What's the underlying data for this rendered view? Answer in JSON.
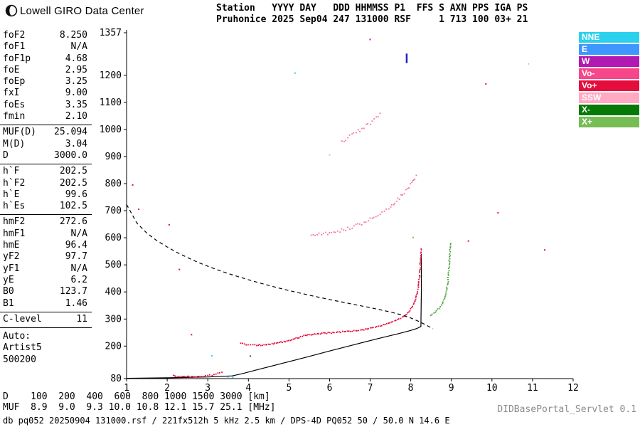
{
  "header": {
    "title": "Lowell GIRO Data Center",
    "station_line1": "Station   YYYY DAY   DDD HHMMSS P1  FFS S AXN PPS IGA PS",
    "station_line2": "Pruhonice 2025 Sep04 247 131000 RSF     1 713 100 03+ 21"
  },
  "readouts": {
    "groups": [
      {
        "rows": [
          {
            "label": "foF2",
            "value": "8.250"
          },
          {
            "label": "foF1",
            "value": "N/A"
          },
          {
            "label": "foF1p",
            "value": "4.68"
          },
          {
            "label": "foE",
            "value": "2.95"
          },
          {
            "label": "foEp",
            "value": "3.25"
          },
          {
            "label": "fxI",
            "value": "9.00"
          },
          {
            "label": "foEs",
            "value": "3.35"
          },
          {
            "label": "fmin",
            "value": "2.10"
          }
        ]
      },
      {
        "rows": [
          {
            "label": "MUF(D)",
            "value": "25.094"
          },
          {
            "label": "M(D)",
            "value": "3.04"
          },
          {
            "label": "D",
            "value": "3000.0"
          }
        ]
      },
      {
        "rows": [
          {
            "label": "h`F",
            "value": "202.5"
          },
          {
            "label": "h`F2",
            "value": "202.5"
          },
          {
            "label": "h`E",
            "value": "99.6"
          },
          {
            "label": "h`Es",
            "value": "102.5"
          }
        ]
      },
      {
        "rows": [
          {
            "label": "hmF2",
            "value": "272.6"
          },
          {
            "label": "hmF1",
            "value": "N/A"
          },
          {
            "label": "hmE",
            "value": "96.4"
          },
          {
            "label": "yF2",
            "value": "97.7"
          },
          {
            "label": "yF1",
            "value": "N/A"
          },
          {
            "label": "yE",
            "value": "6.2"
          },
          {
            "label": "B0",
            "value": "123.7"
          },
          {
            "label": "B1",
            "value": "1.46"
          }
        ]
      },
      {
        "rows": [
          {
            "label": "C-level",
            "value": "11"
          }
        ]
      }
    ],
    "auto_label": "Auto:",
    "auto_lines": [
      "Artist5",
      "500200"
    ]
  },
  "legend": {
    "items": [
      {
        "label": "NNE",
        "color": "#2bd1ec"
      },
      {
        "label": "E",
        "color": "#3e97ff"
      },
      {
        "label": "W",
        "color": "#b119b1"
      },
      {
        "label": "Vo-",
        "color": "#f7478a"
      },
      {
        "label": "Vo+",
        "color": "#e40d3c"
      },
      {
        "label": "SSW",
        "color": "#ffa9c3"
      },
      {
        "label": "X-",
        "color": "#077907"
      },
      {
        "label": "X+",
        "color": "#76bd55"
      }
    ]
  },
  "footer": {
    "d_line": "D    100  200  400  600  800 1000 1500 3000 [km]",
    "muf_line": "MUF  8.9  9.0  9.3 10.0 10.8 12.1 15.7 25.1 [MHz]",
    "status": "db pq052 20250904 131000.rsf / 221fx512h 5 kHz 2.5 km / DPS-4D PQ052 50 / 50.0 N 14.6 E",
    "servlet": "DIDBasePortal_Servlet 0.1"
  },
  "chart_data": {
    "type": "scatter",
    "title": "Ionogram, Pruhonice, 2025 Sep04 13:10:00",
    "xlabel": "[MHz]",
    "ylabel": "[km]",
    "xlim": [
      1,
      12
    ],
    "ylim": [
      80,
      1357
    ],
    "x_ticks": [
      1,
      2,
      3,
      4,
      5,
      6,
      7,
      8,
      9,
      10,
      11,
      12
    ],
    "y_ticks": [
      80,
      200,
      300,
      400,
      500,
      600,
      700,
      800,
      900,
      1000,
      1100,
      1200,
      1357
    ],
    "grid": false,
    "legend_position": "right",
    "series": [
      {
        "name": "transmission-curve",
        "mode": "dashed",
        "color": "#000000",
        "width": 1.2,
        "points": [
          [
            1.0,
            723
          ],
          [
            1.25,
            655
          ],
          [
            1.5,
            617
          ],
          [
            1.75,
            589
          ],
          [
            2.0,
            566
          ],
          [
            2.25,
            545
          ],
          [
            2.5,
            527
          ],
          [
            2.75,
            510
          ],
          [
            3.0,
            495
          ],
          [
            3.25,
            481
          ],
          [
            3.5,
            468
          ],
          [
            4.0,
            445
          ],
          [
            4.5,
            424
          ],
          [
            5.0,
            405
          ],
          [
            5.5,
            388
          ],
          [
            6.0,
            372
          ],
          [
            6.5,
            357
          ],
          [
            7.0,
            342
          ],
          [
            7.5,
            326
          ],
          [
            7.8,
            314
          ],
          [
            8.0,
            304
          ],
          [
            8.2,
            291
          ],
          [
            8.4,
            276
          ],
          [
            8.55,
            264
          ]
        ]
      },
      {
        "name": "true-height-profile",
        "mode": "line",
        "color": "#000000",
        "width": 1.2,
        "points": [
          [
            1.0,
            81
          ],
          [
            2.0,
            83
          ],
          [
            3.0,
            86
          ],
          [
            3.6,
            90
          ],
          [
            3.85,
            98
          ],
          [
            4.2,
            112
          ],
          [
            4.8,
            135
          ],
          [
            5.4,
            158
          ],
          [
            6.0,
            182
          ],
          [
            6.6,
            205
          ],
          [
            7.2,
            228
          ],
          [
            7.7,
            246
          ],
          [
            8.0,
            258
          ],
          [
            8.15,
            265
          ],
          [
            8.25,
            272.6
          ],
          [
            8.26,
            400
          ],
          [
            8.26,
            540
          ]
        ]
      },
      {
        "name": "o-trace-E",
        "mode": "dots",
        "color": "#e40d3c",
        "spread": 1.6,
        "points": [
          [
            2.15,
            90
          ],
          [
            2.3,
            88
          ],
          [
            2.45,
            87
          ],
          [
            2.6,
            87
          ],
          [
            2.75,
            88
          ],
          [
            2.9,
            89
          ],
          [
            3.0,
            91
          ],
          [
            3.1,
            93
          ],
          [
            3.2,
            97
          ],
          [
            3.3,
            101
          ],
          [
            3.38,
            106
          ]
        ]
      },
      {
        "name": "o-trace-F",
        "mode": "dots",
        "color": "#e40d3c",
        "spread": 1.8,
        "points": [
          [
            3.82,
            212
          ],
          [
            3.9,
            207
          ],
          [
            4.0,
            204
          ],
          [
            4.1,
            203
          ],
          [
            4.2,
            203
          ],
          [
            4.35,
            204
          ],
          [
            4.5,
            207
          ],
          [
            4.65,
            210
          ],
          [
            4.8,
            214
          ],
          [
            4.95,
            219
          ],
          [
            5.1,
            226
          ],
          [
            5.25,
            233
          ],
          [
            5.4,
            239
          ],
          [
            5.55,
            243
          ],
          [
            5.7,
            246
          ],
          [
            5.85,
            248
          ],
          [
            6.0,
            249
          ],
          [
            6.2,
            251
          ],
          [
            6.4,
            253
          ],
          [
            6.6,
            256
          ],
          [
            6.8,
            260
          ],
          [
            7.0,
            266
          ],
          [
            7.2,
            273
          ],
          [
            7.4,
            281
          ],
          [
            7.6,
            292
          ],
          [
            7.75,
            303
          ],
          [
            7.9,
            318
          ],
          [
            8.0,
            336
          ],
          [
            8.08,
            358
          ],
          [
            8.14,
            385
          ],
          [
            8.18,
            415
          ],
          [
            8.21,
            450
          ],
          [
            8.23,
            490
          ],
          [
            8.245,
            530
          ],
          [
            8.255,
            565
          ]
        ]
      },
      {
        "name": "second-hop-trace",
        "mode": "dots",
        "color": "#f074a1",
        "spread": 4.5,
        "gap": 3.2,
        "points": [
          [
            5.55,
            612
          ],
          [
            5.7,
            612
          ],
          [
            5.85,
            615
          ],
          [
            6.0,
            619
          ],
          [
            6.15,
            623
          ],
          [
            6.3,
            628
          ],
          [
            6.45,
            634
          ],
          [
            6.6,
            641
          ],
          [
            6.75,
            650
          ],
          [
            6.9,
            660
          ],
          [
            7.05,
            671
          ],
          [
            7.2,
            684
          ],
          [
            7.35,
            699
          ],
          [
            7.5,
            716
          ],
          [
            7.65,
            736
          ],
          [
            7.8,
            758
          ],
          [
            7.92,
            780
          ],
          [
            8.02,
            802
          ],
          [
            8.1,
            820
          ],
          [
            8.17,
            838
          ]
        ]
      },
      {
        "name": "third-hop-cluster",
        "mode": "dots",
        "color": "#f074a1",
        "spread": 5,
        "gap": 3.5,
        "points": [
          [
            6.3,
            955
          ],
          [
            6.45,
            968
          ],
          [
            6.6,
            982
          ],
          [
            6.75,
            997
          ],
          [
            6.9,
            1013
          ],
          [
            7.0,
            1025
          ],
          [
            7.1,
            1038
          ],
          [
            7.2,
            1052
          ],
          [
            7.28,
            1063
          ]
        ]
      },
      {
        "name": "x-trace",
        "mode": "dots",
        "color": "#4d9f3e",
        "spread": 1.6,
        "points": [
          [
            8.5,
            315
          ],
          [
            8.6,
            325
          ],
          [
            8.7,
            340
          ],
          [
            8.78,
            358
          ],
          [
            8.84,
            380
          ],
          [
            8.88,
            405
          ],
          [
            8.91,
            432
          ],
          [
            8.93,
            460
          ],
          [
            8.94,
            487
          ],
          [
            8.95,
            512
          ],
          [
            8.96,
            535
          ],
          [
            8.97,
            555
          ],
          [
            8.975,
            572
          ],
          [
            8.98,
            586
          ]
        ]
      },
      {
        "name": "e-region-flag",
        "mode": "line",
        "color": "#2020c8",
        "width": 2.5,
        "points": [
          [
            7.9,
            1245
          ],
          [
            7.9,
            1280
          ]
        ]
      },
      {
        "name": "noise-echoes",
        "mode": "points",
        "points": [
          [
            1.15,
            795,
            "#e40d3c"
          ],
          [
            1.3,
            705,
            "#e40d3c"
          ],
          [
            2.05,
            648,
            "#e40d3c"
          ],
          [
            2.3,
            483,
            "#e40d3c"
          ],
          [
            2.6,
            242,
            "#e40d3c"
          ],
          [
            3.1,
            164,
            "#2bd1ec"
          ],
          [
            3.5,
            86,
            "#2bd1ec"
          ],
          [
            3.62,
            85,
            "#2bd1ec"
          ],
          [
            4.05,
            163,
            "#077907"
          ],
          [
            5.15,
            1208,
            "#2bd1ec"
          ],
          [
            6.0,
            906,
            "#ffa9c3"
          ],
          [
            7.0,
            1332,
            "#b119b1"
          ],
          [
            8.06,
            601,
            "#76bd55"
          ],
          [
            9.42,
            588,
            "#e40d3c"
          ],
          [
            9.85,
            1168,
            "#e40d3c"
          ],
          [
            10.15,
            692,
            "#e40d3c"
          ],
          [
            10.9,
            1242,
            "#ffa9c3"
          ],
          [
            11.3,
            555,
            "#e40d3c"
          ]
        ]
      }
    ]
  }
}
